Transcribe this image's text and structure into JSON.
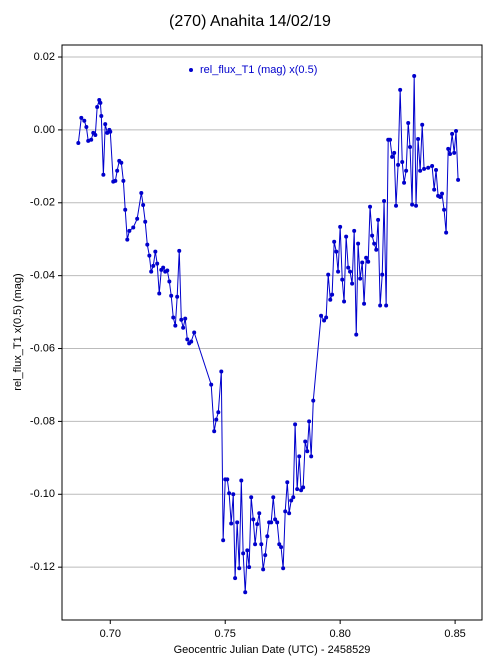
{
  "chart_data": {
    "type": "line",
    "title": "(270) Anahita 14/02/19",
    "x_label": "Geocentric Julian Date (UTC) - 2458529",
    "y_label": "rel_flux_T1 x(0.5) (mag)",
    "xlim": [
      0.679,
      0.8617
    ],
    "ylim": [
      -0.1345,
      0.0233
    ],
    "xticks": [
      {
        "value": 0.7,
        "label": "0.70"
      },
      {
        "value": 0.75,
        "label": "0.75"
      },
      {
        "value": 0.8,
        "label": "0.80"
      },
      {
        "value": 0.85,
        "label": "0.85"
      }
    ],
    "yticks": [
      0.02,
      {
        "value": 0,
        "label": "0.00"
      },
      -0.02,
      -0.04,
      -0.06,
      -0.08,
      {
        "value": -0.1,
        "label": "-0.10"
      },
      -0.12
    ],
    "grid": true,
    "legend": "top",
    "x": [
      0.6861,
      0.6874,
      0.6887,
      0.6896,
      0.6904,
      0.6917,
      0.6926,
      0.6935,
      0.6943,
      0.6952,
      0.6957,
      0.6961,
      0.697,
      0.6978,
      0.6987,
      0.6996,
      0.7,
      0.7013,
      0.7022,
      0.703,
      0.7039,
      0.7048,
      0.7057,
      0.7065,
      0.7074,
      0.7083,
      0.71,
      0.7117,
      0.7135,
      0.7143,
      0.7152,
      0.7161,
      0.717,
      0.7178,
      0.7187,
      0.7196,
      0.7204,
      0.7213,
      0.7222,
      0.723,
      0.7239,
      0.7248,
      0.7257,
      0.7265,
      0.7274,
      0.7283,
      0.7291,
      0.73,
      0.7309,
      0.7317,
      0.7326,
      0.7335,
      0.7343,
      0.7352,
      0.7365,
      0.7439,
      0.7452,
      0.7461,
      0.747,
      0.7483,
      0.7491,
      0.75,
      0.7509,
      0.7517,
      0.7526,
      0.7535,
      0.7543,
      0.7552,
      0.7561,
      0.757,
      0.7578,
      0.7587,
      0.7596,
      0.7604,
      0.7613,
      0.7622,
      0.763,
      0.7639,
      0.7648,
      0.7657,
      0.7665,
      0.7674,
      0.7683,
      0.7691,
      0.77,
      0.7709,
      0.7717,
      0.7726,
      0.7735,
      0.7743,
      0.7752,
      0.7761,
      0.777,
      0.7778,
      0.7787,
      0.7796,
      0.7804,
      0.7813,
      0.7822,
      0.783,
      0.7839,
      0.7848,
      0.7857,
      0.7865,
      0.7874,
      0.7883,
      0.7917,
      0.793,
      0.7939,
      0.7948,
      0.7957,
      0.7965,
      0.7974,
      0.7983,
      0.7991,
      0.8,
      0.8009,
      0.8017,
      0.8026,
      0.8035,
      0.8043,
      0.8052,
      0.8061,
      0.807,
      0.8078,
      0.8087,
      0.8096,
      0.8104,
      0.8113,
      0.8122,
      0.813,
      0.8139,
      0.8148,
      0.8157,
      0.8165,
      0.8174,
      0.8183,
      0.8191,
      0.82,
      0.8209,
      0.8217,
      0.8226,
      0.8235,
      0.8243,
      0.8252,
      0.8261,
      0.827,
      0.8278,
      0.8287,
      0.8296,
      0.8304,
      0.8313,
      0.8322,
      0.833,
      0.8339,
      0.8348,
      0.8357,
      0.8365,
      0.8383,
      0.84,
      0.8409,
      0.8417,
      0.8426,
      0.8435,
      0.8443,
      0.8452,
      0.8461,
      0.847,
      0.8478,
      0.8487,
      0.8496,
      0.8504,
      0.8513
    ],
    "series": [
      {
        "name": "rel_flux_T1 (mag) x(0.5)",
        "color": "#0000cc",
        "values": [
          -0.0036,
          0.0033,
          0.0025,
          0.0008,
          -0.003,
          -0.0027,
          -0.0008,
          -0.0014,
          0.0063,
          0.0082,
          0.0074,
          0.0038,
          -0.0123,
          0.0016,
          -0.0008,
          0,
          -0.0005,
          -0.0142,
          -0.014,
          -0.0112,
          -0.0085,
          -0.009,
          -0.014,
          -0.0219,
          -0.0301,
          -0.0277,
          -0.0268,
          -0.0244,
          -0.0173,
          -0.0206,
          -0.0252,
          -0.0315,
          -0.0345,
          -0.0389,
          -0.0373,
          -0.0334,
          -0.0367,
          -0.0449,
          -0.0384,
          -0.0378,
          -0.0389,
          -0.0386,
          -0.0416,
          -0.0455,
          -0.0515,
          -0.0537,
          -0.0458,
          -0.0332,
          -0.0521,
          -0.0543,
          -0.0518,
          -0.0575,
          -0.0586,
          -0.0581,
          -0.0556,
          -0.0699,
          -0.0827,
          -0.0795,
          -0.0775,
          -0.0663,
          -0.1126,
          -0.0959,
          -0.0959,
          -0.0997,
          -0.108,
          -0.1,
          -0.123,
          -0.1077,
          -0.1203,
          -0.0962,
          -0.1162,
          -0.1269,
          -0.1154,
          -0.12,
          -0.1008,
          -0.1069,
          -0.1137,
          -0.1082,
          -0.1052,
          -0.1137,
          -0.1206,
          -0.1167,
          -0.1115,
          -0.1077,
          -0.1077,
          -0.1008,
          -0.1069,
          -0.1077,
          -0.1137,
          -0.1145,
          -0.1203,
          -0.1047,
          -0.0967,
          -0.1052,
          -0.1017,
          -0.1008,
          -0.0808,
          -0.0986,
          -0.0896,
          -0.0989,
          -0.0981,
          -0.0855,
          -0.0882,
          -0.08,
          -0.0896,
          -0.0743,
          -0.051,
          -0.0523,
          -0.0515,
          -0.0397,
          -0.0466,
          -0.0452,
          -0.0307,
          -0.0334,
          -0.0389,
          -0.0266,
          -0.0411,
          -0.0471,
          -0.0293,
          -0.0378,
          -0.0389,
          -0.0422,
          -0.0277,
          -0.0562,
          -0.0312,
          -0.0408,
          -0.0364,
          -0.0477,
          -0.0351,
          -0.0362,
          -0.0211,
          -0.029,
          -0.0312,
          -0.0329,
          -0.0247,
          -0.0482,
          -0.0397,
          -0.0195,
          -0.0482,
          -0.0027,
          -0.0027,
          -0.0074,
          -0.0063,
          -0.0208,
          -0.0096,
          0.011,
          -0.0088,
          -0.0145,
          -0.0112,
          0.0019,
          -0.0047,
          -0.0205,
          0.0148,
          -0.0208,
          -0.0025,
          -0.0112,
          0.0014,
          -0.0107,
          -0.0104,
          -0.0099,
          -0.0164,
          -0.011,
          -0.0181,
          -0.0184,
          -0.0175,
          -0.0219,
          -0.0282,
          -0.0052,
          -0.0066,
          -0.0011,
          -0.0063,
          -0.0003,
          -0.0137
        ]
      }
    ]
  }
}
